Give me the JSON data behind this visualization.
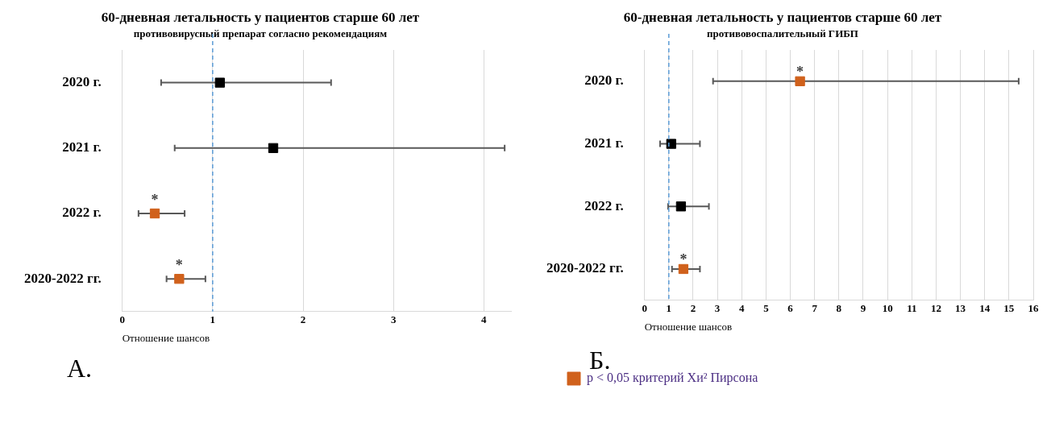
{
  "chart_data": [
    {
      "type": "scatter",
      "orientation": "horizontal",
      "title": "60-дневная летальность у пациентов старше 60 лет",
      "subtitle": "противовирусный препарат согласно рекомендациям",
      "xlabel": "Отношение шансов",
      "categories": [
        "2020 г.",
        "2021 г.",
        "2022 г.",
        "2020-2022 гг."
      ],
      "xlim": [
        0,
        4.3
      ],
      "xticks": [
        0,
        1,
        2,
        3,
        4
      ],
      "grid": "x",
      "marker": "square",
      "series": [
        {
          "color": "#000000",
          "values": [
            1.08,
            1.67,
            null,
            null
          ],
          "errors": [
            [
              0.43,
              2.31
            ],
            [
              0.58,
              4.23
            ],
            null,
            null
          ]
        },
        {
          "color": "#d0611c",
          "values": [
            null,
            null,
            0.36,
            0.63
          ],
          "errors": [
            null,
            null,
            [
              0.18,
              0.69
            ],
            [
              0.49,
              0.92
            ]
          ]
        }
      ],
      "ref_lines": [
        {
          "axis": "x",
          "value": 1,
          "color": "#5b9bd5",
          "line_style": "dashed"
        }
      ],
      "annotations": [
        {
          "text": "*",
          "x": 0.36,
          "y": "2022 г."
        },
        {
          "text": "*",
          "x": 0.63,
          "y": "2020-2022 гг."
        },
        "А."
      ]
    },
    {
      "type": "scatter",
      "orientation": "horizontal",
      "title": "60-дневная летальность у пациентов старше 60 лет",
      "subtitle": "противовоспалительный ГИБП",
      "xlabel": "Отношение шансов",
      "categories": [
        "2020 г.",
        "2021 г.",
        "2022 г.",
        "2020-2022 гг."
      ],
      "xlim": [
        0,
        16
      ],
      "xticks": [
        0,
        1,
        2,
        3,
        4,
        5,
        6,
        7,
        8,
        9,
        10,
        11,
        12,
        13,
        14,
        15,
        16
      ],
      "grid": "x",
      "marker": "square",
      "legend": "bottom left",
      "series": [
        {
          "color": "#000000",
          "values": [
            null,
            1.1,
            1.5,
            null
          ],
          "errors": [
            null,
            [
              0.64,
              2.28
            ],
            [
              0.97,
              2.65
            ],
            null
          ]
        },
        {
          "name": "p < 0,05 критерий Хи² Пирсона",
          "color": "#d0611c",
          "values": [
            6.4,
            null,
            null,
            1.6
          ],
          "errors": [
            [
              2.82,
              15.4
            ],
            null,
            null,
            [
              1.13,
              2.28
            ]
          ]
        }
      ],
      "ref_lines": [
        {
          "axis": "x",
          "value": 1,
          "color": "#5b9bd5",
          "line_style": "dashed"
        }
      ],
      "annotations": [
        {
          "text": "*",
          "x": 6.4,
          "y": "2020 г."
        },
        {
          "text": "*",
          "x": 1.6,
          "y": "2020-2022 гг."
        },
        "Б."
      ]
    }
  ]
}
